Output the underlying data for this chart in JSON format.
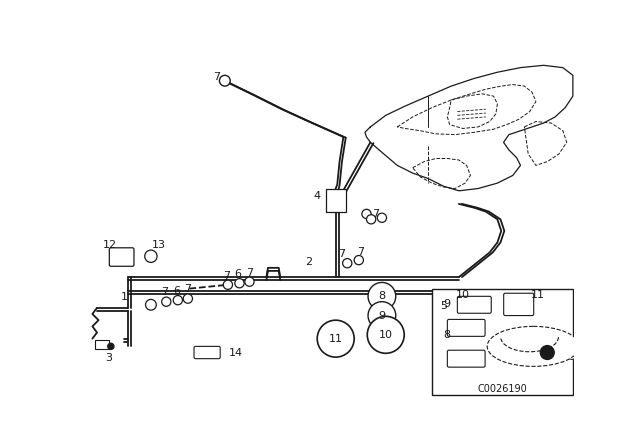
{
  "bg_color": "#ffffff",
  "line_color": "#1a1a1a",
  "watermark": "C0026190",
  "pipe_lw": 1.3,
  "thin_lw": 0.7,
  "label_fs": 8
}
